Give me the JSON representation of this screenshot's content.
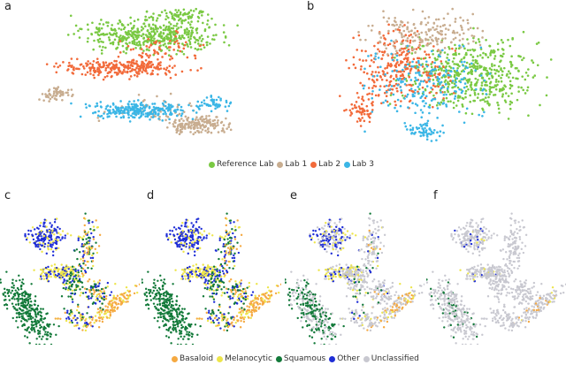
{
  "chart_data": [
    {
      "panel": "a",
      "type": "scatter",
      "series": [
        {
          "name": "Reference Lab",
          "color": "#7ac943"
        },
        {
          "name": "Lab 1",
          "color": "#c8ad90"
        },
        {
          "name": "Lab 2",
          "color": "#f26a3a"
        },
        {
          "name": "Lab 3",
          "color": "#3bb6e6"
        }
      ],
      "clusters": [
        {
          "s": 0,
          "cx": 55,
          "cy": 22,
          "sx": 25,
          "sy": 9,
          "n": 450
        },
        {
          "s": 0,
          "cx": 70,
          "cy": 8,
          "sx": 12,
          "sy": 4,
          "n": 80
        },
        {
          "s": 2,
          "cx": 40,
          "cy": 45,
          "sx": 24,
          "sy": 5,
          "n": 260
        },
        {
          "s": 2,
          "cx": 60,
          "cy": 32,
          "sx": 15,
          "sy": 8,
          "n": 60
        },
        {
          "s": 1,
          "cx": 10,
          "cy": 63,
          "sx": 6,
          "sy": 4,
          "n": 60
        },
        {
          "s": 1,
          "cx": 78,
          "cy": 85,
          "sx": 12,
          "sy": 5,
          "n": 170
        },
        {
          "s": 1,
          "cx": 55,
          "cy": 75,
          "sx": 20,
          "sy": 8,
          "n": 50
        },
        {
          "s": 3,
          "cx": 50,
          "cy": 75,
          "sx": 20,
          "sy": 5,
          "n": 260
        },
        {
          "s": 3,
          "cx": 85,
          "cy": 70,
          "sx": 7,
          "sy": 4,
          "n": 50
        }
      ]
    },
    {
      "panel": "b",
      "type": "scatter",
      "series": [
        {
          "name": "Reference Lab",
          "color": "#7ac943"
        },
        {
          "name": "Lab 1",
          "color": "#c8ad90"
        },
        {
          "name": "Lab 2",
          "color": "#f26a3a"
        },
        {
          "name": "Lab 3",
          "color": "#3bb6e6"
        }
      ],
      "clusters": [
        {
          "s": 0,
          "cx": 60,
          "cy": 50,
          "sx": 22,
          "sy": 20,
          "n": 500
        },
        {
          "s": 2,
          "cx": 30,
          "cy": 45,
          "sx": 16,
          "sy": 22,
          "n": 300
        },
        {
          "s": 1,
          "cx": 40,
          "cy": 20,
          "sx": 18,
          "sy": 12,
          "n": 180
        },
        {
          "s": 3,
          "cx": 40,
          "cy": 55,
          "sx": 20,
          "sy": 20,
          "n": 200
        },
        {
          "s": 3,
          "cx": 40,
          "cy": 88,
          "sx": 6,
          "sy": 5,
          "n": 60
        },
        {
          "s": 2,
          "cx": 12,
          "cy": 75,
          "sx": 5,
          "sy": 7,
          "n": 50
        }
      ]
    },
    {
      "panel": "c",
      "type": "scatter",
      "series": [
        {
          "name": "Basaloid",
          "color": "#f5a941"
        },
        {
          "name": "Melanocytic",
          "color": "#ede54a"
        },
        {
          "name": "Squamous",
          "color": "#137a3a"
        },
        {
          "name": "Other",
          "color": "#1f2ed6"
        },
        {
          "name": "Unclassified",
          "color": "#c8c8d0"
        }
      ]
    },
    {
      "panel": "d",
      "type": "scatter"
    },
    {
      "panel": "e",
      "type": "scatter"
    },
    {
      "panel": "f",
      "type": "scatter"
    }
  ],
  "labels": {
    "a": "a",
    "b": "b",
    "c": "c",
    "d": "d",
    "e": "e",
    "f": "f"
  },
  "legend_top": [
    "Reference Lab",
    "Lab 1",
    "Lab 2",
    "Lab 3"
  ],
  "legend_bottom": [
    "Basaloid",
    "Melanocytic",
    "Squamous",
    "Other",
    "Unclassified"
  ],
  "colors_top": [
    "#7ac943",
    "#c8ad90",
    "#f26a3a",
    "#3bb6e6"
  ],
  "colors_bottom": [
    "#f5a941",
    "#ede54a",
    "#137a3a",
    "#1f2ed6",
    "#c8c8d0"
  ]
}
